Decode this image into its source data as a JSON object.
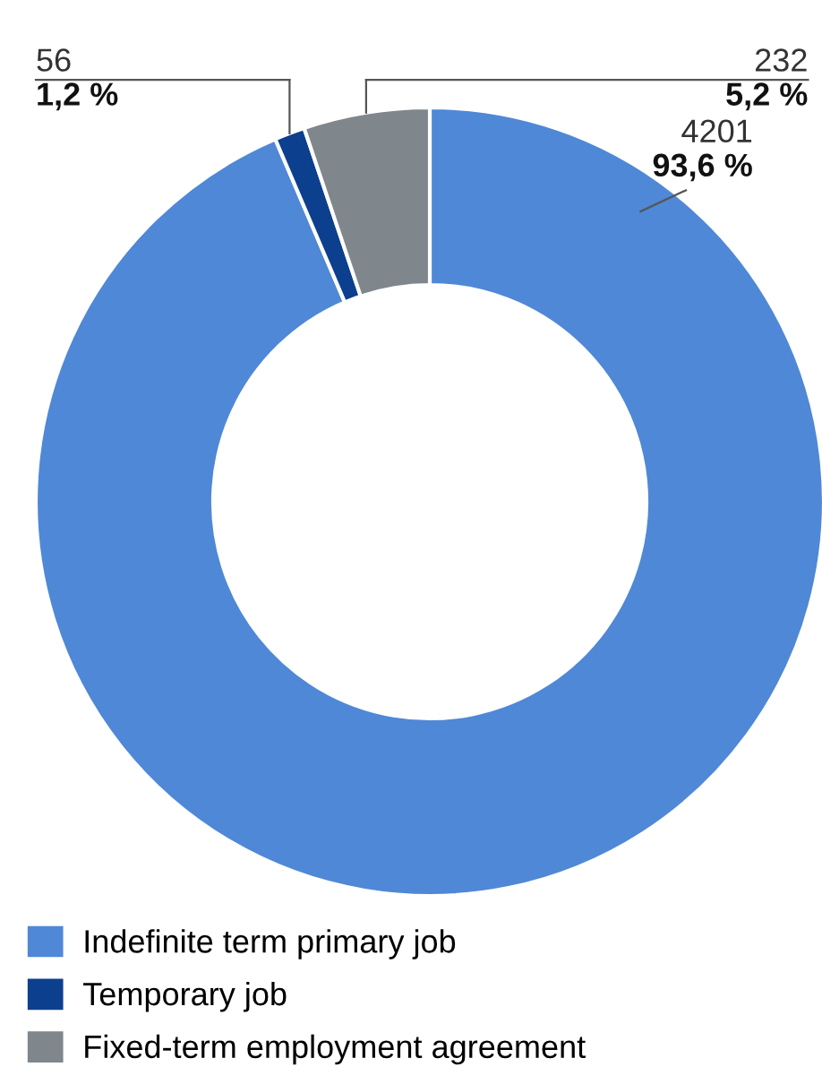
{
  "chart_data": {
    "type": "donut",
    "categories": [
      "Indefinite term primary job",
      "Temporary job",
      "Fixed-term employment agreement"
    ],
    "values": [
      4201,
      56,
      232
    ],
    "colors": [
      "#4f88d6",
      "#0d3f8f",
      "#7f868c"
    ],
    "value_labels": [
      "4201\n93,6 %",
      "56\n1,2 %",
      "232\n5,2 %"
    ],
    "legend": "bottom left"
  }
}
